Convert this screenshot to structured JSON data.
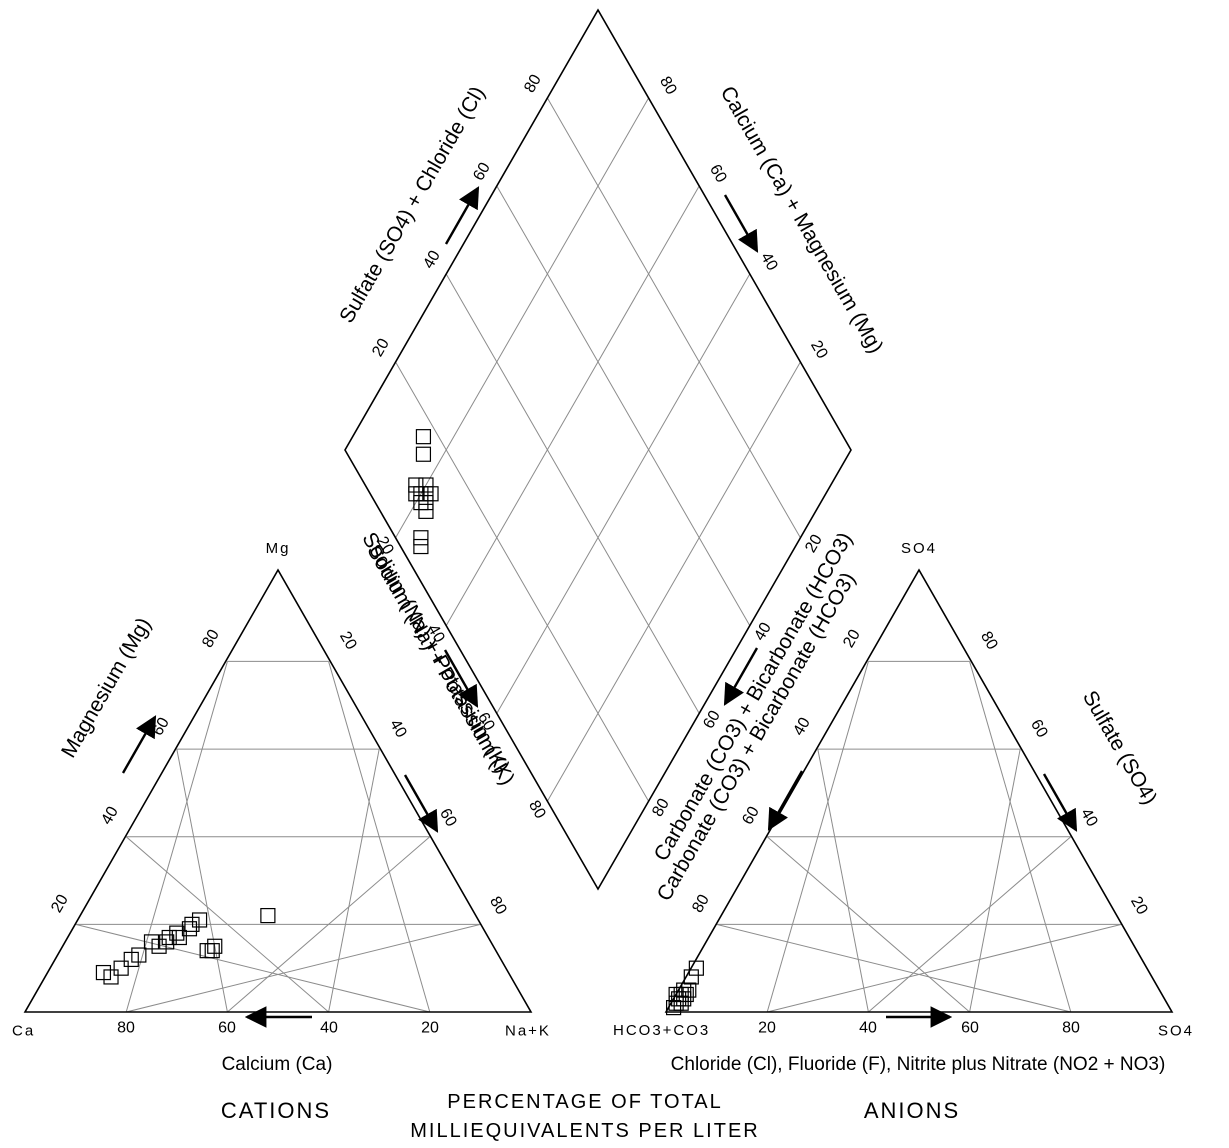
{
  "chart_data": {
    "type": "scatter",
    "diagram": "piper",
    "cations": {
      "corners": {
        "left": "Ca",
        "right": "Na+K",
        "top": "Mg"
      },
      "bottom_ticks": [
        "80",
        "60",
        "40",
        "20"
      ],
      "left_ticks": [
        "20",
        "40",
        "60",
        "80"
      ],
      "right_ticks": [
        "20",
        "40",
        "60",
        "80"
      ],
      "bottom_title": "Calcium (Ca)",
      "left_title": "Magnesium (Mg)",
      "right_title": "Sodium (Na) + Potassium (K)",
      "group_label": "CATIONS",
      "points": [
        {
          "mg": 22,
          "nak": 37
        },
        {
          "mg": 20,
          "nak": 23
        },
        {
          "mg": 19,
          "nak": 23
        },
        {
          "mg": 17,
          "nak": 22
        },
        {
          "mg": 18,
          "nak": 21
        },
        {
          "mg": 16,
          "nak": 20
        },
        {
          "mg": 17,
          "nak": 20
        },
        {
          "mg": 15,
          "nak": 19
        },
        {
          "mg": 16,
          "nak": 17
        },
        {
          "mg": 13,
          "nak": 16
        },
        {
          "mg": 12,
          "nak": 15
        },
        {
          "mg": 10,
          "nak": 14
        },
        {
          "mg": 9,
          "nak": 11
        },
        {
          "mg": 8,
          "nak": 13
        },
        {
          "mg": 15,
          "nak": 30
        },
        {
          "mg": 14,
          "nak": 30
        },
        {
          "mg": 14,
          "nak": 29
        },
        {
          "mg": 21,
          "nak": 24
        }
      ]
    },
    "anions": {
      "corners": {
        "left": "HCO3+CO3",
        "right": "SO4",
        "top": "SO4"
      },
      "bottom_ticks": [
        "20",
        "40",
        "60",
        "80"
      ],
      "left_ticks": [
        "80",
        "60",
        "40",
        "20"
      ],
      "right_ticks": [
        "60",
        "40",
        "20"
      ],
      "right_tick_top": "80",
      "bottom_title": "Chloride (Cl), Fluoride (F), Nitrite plus Nitrate (NO2 + NO3)",
      "left_title": "Carbonate (CO3) + Bicarbonate (HCO3)",
      "right_title": "Sulfate (SO4)",
      "group_label": "ANIONS",
      "points": [
        {
          "so4": 10,
          "cl": 1
        },
        {
          "so4": 8,
          "cl": 1
        },
        {
          "so4": 5,
          "cl": 1
        },
        {
          "so4": 4,
          "cl": 1
        },
        {
          "so4": 4,
          "cl": 2
        },
        {
          "so4": 3,
          "cl": 1
        },
        {
          "so4": 3,
          "cl": 2
        },
        {
          "so4": 2,
          "cl": 1
        },
        {
          "so4": 2,
          "cl": 2
        },
        {
          "so4": 1,
          "cl": 1
        },
        {
          "so4": 5,
          "cl": 2
        },
        {
          "so4": 4,
          "cl": 0
        }
      ]
    },
    "diamond": {
      "upper_left_ticks": [
        "20",
        "40",
        "60",
        "80"
      ],
      "upper_right_ticks": [
        "80",
        "60",
        "40",
        "20"
      ],
      "lower_left_ticks": [
        "20",
        "40",
        "60",
        "80"
      ],
      "lower_right_ticks": [
        "20",
        "40",
        "60",
        "80"
      ],
      "upper_left_title": "Sulfate (SO4) + Chloride (Cl)",
      "upper_right_title": "Calcium (Ca) + Magnesium (Mg)",
      "lower_left_title": "Sodium (Na) + Potassium (K)",
      "lower_right_title": "Carbonate (CO3) + Bicarbonate (HCO3)",
      "points": [
        {
          "nak": 22,
          "socl": 12
        },
        {
          "nak": 22,
          "socl": 10
        },
        {
          "nak": 20,
          "socl": 12
        },
        {
          "nak": 20,
          "socl": 10
        },
        {
          "nak": 21,
          "socl": 9
        },
        {
          "nak": 19,
          "socl": 9
        },
        {
          "nak": 18,
          "socl": 10
        },
        {
          "nak": 21,
          "socl": 11
        },
        {
          "nak": 23,
          "socl": 9
        },
        {
          "nak": 26,
          "socl": 4
        },
        {
          "nak": 25,
          "socl": 5
        },
        {
          "nak": 14,
          "socl": 17
        },
        {
          "nak": 16,
          "socl": 15
        }
      ]
    },
    "center_label_line1": "PERCENTAGE OF TOTAL",
    "center_label_line2": "MILLIEQUIVALENTS PER LITER"
  }
}
